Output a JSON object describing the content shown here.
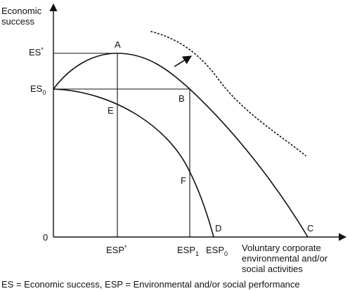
{
  "y_axis": {
    "label_line1": "Economic",
    "label_line2": "success"
  },
  "x_axis": {
    "label_line1": "Voluntary corporate",
    "label_line2": "environmental and/or",
    "label_line3": "social activities"
  },
  "origin_label": "0",
  "y_ticks": {
    "es_star": {
      "base": "ES",
      "sup": "*"
    },
    "es0": {
      "base": "ES",
      "sub": "0"
    }
  },
  "x_ticks": {
    "esp_star": {
      "base": "ESP",
      "sup": "*"
    },
    "esp1": {
      "base": "ESP",
      "sub": "1"
    },
    "esp0": {
      "base": "ESP",
      "sub": "0"
    }
  },
  "points": {
    "A": "A",
    "B": "B",
    "C": "C",
    "D": "D",
    "E": "E",
    "F": "F"
  },
  "caption": "ES = Economic success, ESP = Environmental and/or social performance"
}
